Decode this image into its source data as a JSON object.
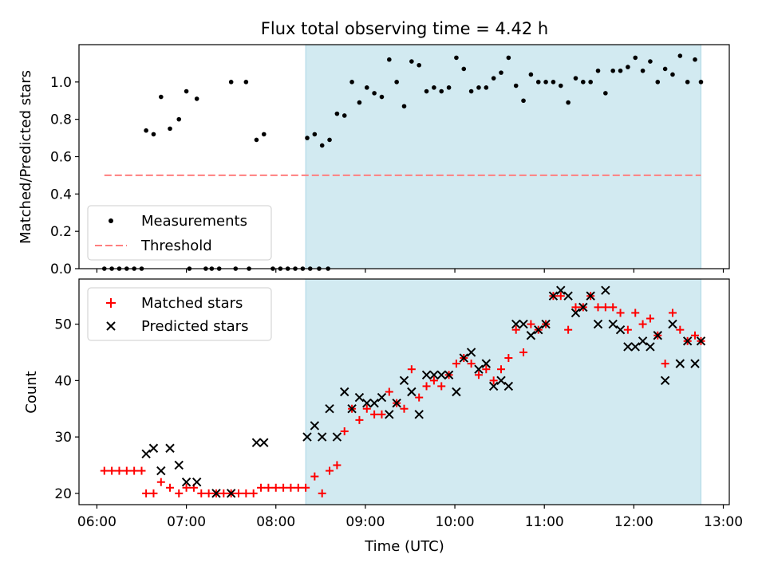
{
  "chart_data": [
    {
      "type": "scatter",
      "title": "Flux total observing time = 4.42 h",
      "xlabel": "",
      "ylabel": "Matched/Predicted stars",
      "xlim": [
        "05:48",
        "13:04"
      ],
      "ylim": [
        0,
        1.2
      ],
      "yticks": [
        "0.0",
        "0.2",
        "0.4",
        "0.6",
        "0.8",
        "1.0"
      ],
      "shaded_region": {
        "start": "08:20",
        "end": "12:45",
        "color": "#add8e6"
      },
      "grid": false,
      "legend_position": "lower-left",
      "series": [
        {
          "name": "Measurements",
          "marker": "dot",
          "color": "#000000",
          "points": [
            [
              "06:05",
              0
            ],
            [
              "06:10",
              0
            ],
            [
              "06:15",
              0
            ],
            [
              "06:20",
              0
            ],
            [
              "06:25",
              0
            ],
            [
              "06:30",
              0
            ],
            [
              "06:33",
              0.74
            ],
            [
              "06:38",
              0.72
            ],
            [
              "06:43",
              0.92
            ],
            [
              "06:49",
              0.75
            ],
            [
              "06:55",
              0.8
            ],
            [
              "07:00",
              0.95
            ],
            [
              "07:07",
              0.91
            ],
            [
              "07:02",
              0
            ],
            [
              "07:13",
              0
            ],
            [
              "07:17",
              0
            ],
            [
              "07:22",
              0
            ],
            [
              "07:30",
              1.0
            ],
            [
              "07:33",
              0
            ],
            [
              "07:40",
              1.0
            ],
            [
              "07:42",
              0
            ],
            [
              "07:47",
              0.69
            ],
            [
              "07:52",
              0.72
            ],
            [
              "07:58",
              0
            ],
            [
              "08:03",
              0
            ],
            [
              "08:08",
              0
            ],
            [
              "08:13",
              0
            ],
            [
              "08:18",
              0
            ],
            [
              "08:23",
              0
            ],
            [
              "08:29",
              0
            ],
            [
              "08:35",
              0
            ],
            [
              "08:21",
              0.7
            ],
            [
              "08:26",
              0.72
            ],
            [
              "08:31",
              0.66
            ],
            [
              "08:36",
              0.69
            ],
            [
              "08:41",
              0.83
            ],
            [
              "08:46",
              0.82
            ],
            [
              "08:51",
              1.0
            ],
            [
              "08:56",
              0.89
            ],
            [
              "09:01",
              0.97
            ],
            [
              "09:06",
              0.94
            ],
            [
              "09:11",
              0.92
            ],
            [
              "09:16",
              1.12
            ],
            [
              "09:21",
              1.0
            ],
            [
              "09:26",
              0.87
            ],
            [
              "09:31",
              1.11
            ],
            [
              "09:36",
              1.09
            ],
            [
              "09:41",
              0.95
            ],
            [
              "09:46",
              0.97
            ],
            [
              "09:51",
              0.95
            ],
            [
              "09:56",
              0.97
            ],
            [
              "10:01",
              1.13
            ],
            [
              "10:06",
              1.07
            ],
            [
              "10:11",
              0.95
            ],
            [
              "10:16",
              0.97
            ],
            [
              "10:21",
              0.97
            ],
            [
              "10:26",
              1.02
            ],
            [
              "10:31",
              1.05
            ],
            [
              "10:36",
              1.13
            ],
            [
              "10:41",
              0.98
            ],
            [
              "10:46",
              0.9
            ],
            [
              "10:51",
              1.04
            ],
            [
              "10:56",
              1.0
            ],
            [
              "11:01",
              1.0
            ],
            [
              "11:06",
              1.0
            ],
            [
              "11:11",
              0.98
            ],
            [
              "11:16",
              0.89
            ],
            [
              "11:21",
              1.02
            ],
            [
              "11:26",
              1.0
            ],
            [
              "11:31",
              1.0
            ],
            [
              "11:36",
              1.06
            ],
            [
              "11:41",
              0.94
            ],
            [
              "11:46",
              1.06
            ],
            [
              "11:51",
              1.06
            ],
            [
              "11:56",
              1.08
            ],
            [
              "12:01",
              1.13
            ],
            [
              "12:06",
              1.06
            ],
            [
              "12:11",
              1.11
            ],
            [
              "12:16",
              1.0
            ],
            [
              "12:21",
              1.07
            ],
            [
              "12:26",
              1.04
            ],
            [
              "12:31",
              1.14
            ],
            [
              "12:36",
              1.0
            ],
            [
              "12:41",
              1.12
            ],
            [
              "12:45",
              1.0
            ]
          ]
        },
        {
          "name": "Threshold",
          "marker": "dashed-line",
          "color": "#ff7f7f",
          "points": [
            [
              "06:05",
              0.5
            ],
            [
              "12:45",
              0.5
            ]
          ]
        }
      ]
    },
    {
      "type": "scatter",
      "title": "",
      "xlabel": "Time (UTC)",
      "ylabel": "Count",
      "xlim": [
        "05:48",
        "13:04"
      ],
      "ylim": [
        18,
        58
      ],
      "xticks": [
        "06:00",
        "07:00",
        "08:00",
        "09:00",
        "10:00",
        "11:00",
        "12:00",
        "13:00"
      ],
      "yticks": [
        "20",
        "30",
        "40",
        "50"
      ],
      "shaded_region": {
        "start": "08:20",
        "end": "12:45",
        "color": "#add8e6"
      },
      "grid": false,
      "legend_position": "top-left",
      "series": [
        {
          "name": "Matched stars",
          "marker": "plus",
          "color": "#ff0000",
          "points": [
            [
              "06:05",
              24
            ],
            [
              "06:10",
              24
            ],
            [
              "06:15",
              24
            ],
            [
              "06:20",
              24
            ],
            [
              "06:25",
              24
            ],
            [
              "06:30",
              24
            ],
            [
              "06:33",
              20
            ],
            [
              "06:38",
              20
            ],
            [
              "06:43",
              22
            ],
            [
              "06:49",
              21
            ],
            [
              "06:55",
              20
            ],
            [
              "07:00",
              21
            ],
            [
              "07:05",
              21
            ],
            [
              "07:10",
              20
            ],
            [
              "07:15",
              20
            ],
            [
              "07:20",
              20
            ],
            [
              "07:25",
              20
            ],
            [
              "07:30",
              20
            ],
            [
              "07:35",
              20
            ],
            [
              "07:40",
              20
            ],
            [
              "07:45",
              20
            ],
            [
              "07:50",
              21
            ],
            [
              "07:55",
              21
            ],
            [
              "08:00",
              21
            ],
            [
              "08:05",
              21
            ],
            [
              "08:10",
              21
            ],
            [
              "08:15",
              21
            ],
            [
              "08:20",
              21
            ],
            [
              "08:26",
              23
            ],
            [
              "08:31",
              20
            ],
            [
              "08:36",
              24
            ],
            [
              "08:41",
              25
            ],
            [
              "08:46",
              31
            ],
            [
              "08:51",
              35
            ],
            [
              "08:56",
              33
            ],
            [
              "09:01",
              35
            ],
            [
              "09:06",
              34
            ],
            [
              "09:11",
              34
            ],
            [
              "09:16",
              38
            ],
            [
              "09:21",
              36
            ],
            [
              "09:26",
              35
            ],
            [
              "09:31",
              42
            ],
            [
              "09:36",
              37
            ],
            [
              "09:41",
              39
            ],
            [
              "09:46",
              40
            ],
            [
              "09:51",
              39
            ],
            [
              "09:56",
              41
            ],
            [
              "10:01",
              43
            ],
            [
              "10:06",
              44
            ],
            [
              "10:11",
              43
            ],
            [
              "10:16",
              41
            ],
            [
              "10:21",
              42
            ],
            [
              "10:26",
              40
            ],
            [
              "10:31",
              42
            ],
            [
              "10:36",
              44
            ],
            [
              "10:41",
              49
            ],
            [
              "10:46",
              45
            ],
            [
              "10:51",
              50
            ],
            [
              "10:56",
              49
            ],
            [
              "11:01",
              50
            ],
            [
              "11:06",
              55
            ],
            [
              "11:11",
              55
            ],
            [
              "11:16",
              49
            ],
            [
              "11:21",
              53
            ],
            [
              "11:26",
              53
            ],
            [
              "11:31",
              55
            ],
            [
              "11:36",
              53
            ],
            [
              "11:41",
              53
            ],
            [
              "11:46",
              53
            ],
            [
              "11:51",
              52
            ],
            [
              "11:56",
              49
            ],
            [
              "12:01",
              52
            ],
            [
              "12:06",
              50
            ],
            [
              "12:11",
              51
            ],
            [
              "12:16",
              48
            ],
            [
              "12:21",
              43
            ],
            [
              "12:26",
              52
            ],
            [
              "12:31",
              49
            ],
            [
              "12:36",
              47
            ],
            [
              "12:41",
              48
            ],
            [
              "12:45",
              47
            ]
          ]
        },
        {
          "name": "Predicted stars",
          "marker": "x",
          "color": "#000000",
          "points": [
            [
              "06:33",
              27
            ],
            [
              "06:38",
              28
            ],
            [
              "06:43",
              24
            ],
            [
              "06:49",
              28
            ],
            [
              "06:55",
              25
            ],
            [
              "07:00",
              22
            ],
            [
              "07:07",
              22
            ],
            [
              "07:20",
              20
            ],
            [
              "07:30",
              20
            ],
            [
              "07:47",
              29
            ],
            [
              "07:52",
              29
            ],
            [
              "08:21",
              30
            ],
            [
              "08:26",
              32
            ],
            [
              "08:31",
              30
            ],
            [
              "08:36",
              35
            ],
            [
              "08:41",
              30
            ],
            [
              "08:46",
              38
            ],
            [
              "08:51",
              35
            ],
            [
              "08:56",
              37
            ],
            [
              "09:01",
              36
            ],
            [
              "09:06",
              36
            ],
            [
              "09:11",
              37
            ],
            [
              "09:16",
              34
            ],
            [
              "09:21",
              36
            ],
            [
              "09:26",
              40
            ],
            [
              "09:31",
              38
            ],
            [
              "09:36",
              34
            ],
            [
              "09:41",
              41
            ],
            [
              "09:46",
              41
            ],
            [
              "09:51",
              41
            ],
            [
              "09:56",
              41
            ],
            [
              "10:01",
              38
            ],
            [
              "10:06",
              44
            ],
            [
              "10:11",
              45
            ],
            [
              "10:16",
              42
            ],
            [
              "10:21",
              43
            ],
            [
              "10:26",
              39
            ],
            [
              "10:31",
              40
            ],
            [
              "10:36",
              39
            ],
            [
              "10:41",
              50
            ],
            [
              "10:46",
              50
            ],
            [
              "10:51",
              48
            ],
            [
              "10:56",
              49
            ],
            [
              "11:01",
              50
            ],
            [
              "11:06",
              55
            ],
            [
              "11:11",
              56
            ],
            [
              "11:16",
              55
            ],
            [
              "11:21",
              52
            ],
            [
              "11:26",
              53
            ],
            [
              "11:31",
              55
            ],
            [
              "11:36",
              50
            ],
            [
              "11:41",
              56
            ],
            [
              "11:46",
              50
            ],
            [
              "11:51",
              49
            ],
            [
              "11:56",
              46
            ],
            [
              "12:01",
              46
            ],
            [
              "12:06",
              47
            ],
            [
              "12:11",
              46
            ],
            [
              "12:16",
              48
            ],
            [
              "12:21",
              40
            ],
            [
              "12:26",
              50
            ],
            [
              "12:31",
              43
            ],
            [
              "12:36",
              47
            ],
            [
              "12:41",
              43
            ],
            [
              "12:45",
              47
            ]
          ]
        }
      ]
    }
  ]
}
